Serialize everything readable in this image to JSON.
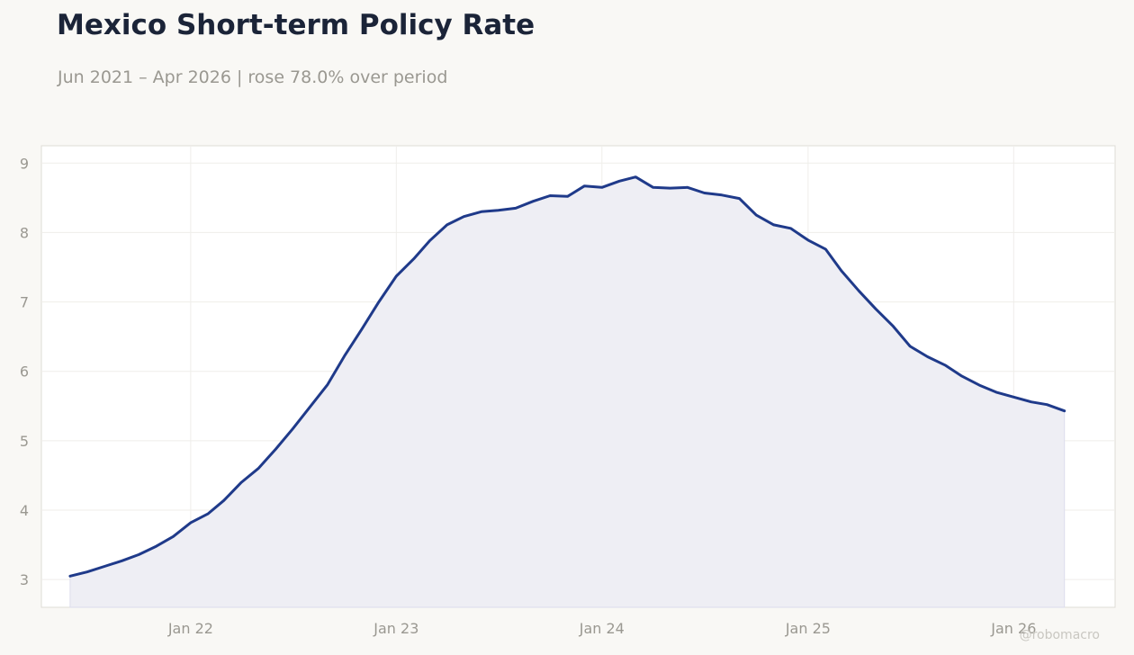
{
  "chart_data": {
    "type": "area",
    "title": "Mexico Short-term Policy Rate",
    "subtitle": "Jun 2021 – Apr 2026 | rose 78.0% over period",
    "xlabel": "",
    "ylabel": "",
    "xlim": [
      "2021-04-11",
      "2026-06-30"
    ],
    "ylim": [
      2.6,
      9.25
    ],
    "grid": true,
    "legend": "none",
    "x_ticks": [
      {
        "date": "2022-01-01",
        "label": "Jan 22"
      },
      {
        "date": "2023-01-01",
        "label": "Jan 23"
      },
      {
        "date": "2024-01-01",
        "label": "Jan 24"
      },
      {
        "date": "2025-01-01",
        "label": "Jan 25"
      },
      {
        "date": "2026-01-01",
        "label": "Jan 26"
      }
    ],
    "y_ticks": [
      3,
      4,
      5,
      6,
      7,
      8,
      9
    ],
    "line_color": "#1f3a8a",
    "fill_color": "#eeeef4",
    "series": [
      {
        "x": [
          "2021-06",
          "2021-07",
          "2021-08",
          "2021-09",
          "2021-10",
          "2021-11",
          "2021-12",
          "2022-01",
          "2022-02",
          "2022-03",
          "2022-04",
          "2022-05",
          "2022-06",
          "2022-07",
          "2022-08",
          "2022-09",
          "2022-10",
          "2022-11",
          "2022-12",
          "2023-01",
          "2023-02",
          "2023-03",
          "2023-04",
          "2023-05",
          "2023-06",
          "2023-07",
          "2023-08",
          "2023-09",
          "2023-10",
          "2023-11",
          "2023-12",
          "2024-01",
          "2024-02",
          "2024-03",
          "2024-04",
          "2024-05",
          "2024-06",
          "2024-07",
          "2024-08",
          "2024-09",
          "2024-10",
          "2024-11",
          "2024-12",
          "2025-01",
          "2025-02",
          "2025-03",
          "2025-04",
          "2025-05",
          "2025-06",
          "2025-07",
          "2025-08",
          "2025-09",
          "2025-10",
          "2025-11",
          "2025-12",
          "2026-01",
          "2026-02",
          "2026-03",
          "2026-04"
        ],
        "values": [
          3.05,
          3.11,
          3.19,
          3.27,
          3.36,
          3.48,
          3.62,
          3.82,
          3.95,
          4.14,
          4.4,
          4.6,
          4.88,
          5.17,
          5.49,
          5.81,
          6.22,
          6.61,
          7.0,
          7.37,
          7.62,
          7.88,
          8.11,
          8.23,
          8.3,
          8.32,
          8.35,
          8.45,
          8.53,
          8.52,
          8.67,
          8.65,
          8.74,
          8.8,
          8.65,
          8.64,
          8.65,
          8.57,
          8.54,
          8.49,
          8.25,
          8.11,
          8.06,
          7.89,
          7.76,
          7.45,
          7.16,
          6.9,
          6.65,
          6.36,
          6.21,
          6.09,
          5.93,
          5.8,
          5.7,
          5.63,
          5.56,
          5.52,
          5.43
        ]
      }
    ]
  },
  "watermark": "@robomacro"
}
